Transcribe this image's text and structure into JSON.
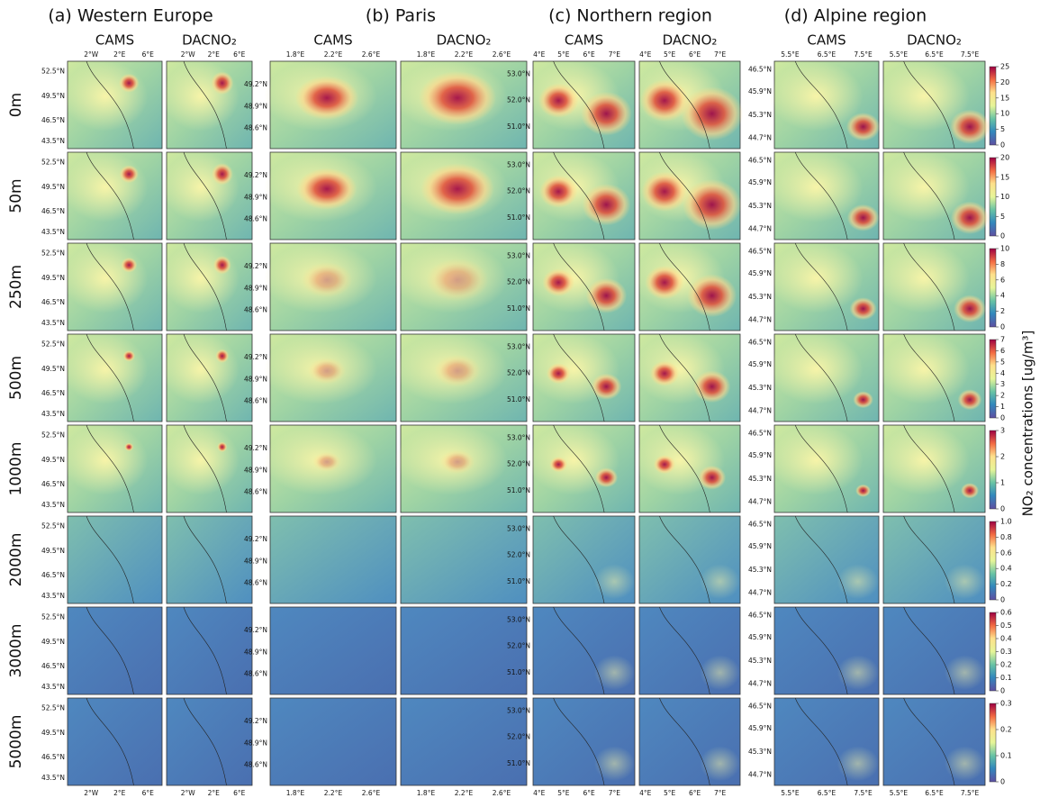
{
  "figure": {
    "regions": [
      {
        "title": "(a)  Western Europe",
        "columns": [
          "CAMS",
          "DACNO₂"
        ],
        "lon_labels": [
          "2°W",
          "2°E",
          "6°E"
        ],
        "lat_labels": [
          "52.5°N",
          "49.5°N",
          "46.5°N",
          "43.5°N"
        ]
      },
      {
        "title": "(b)            Paris",
        "columns": [
          "CAMS",
          "DACNO₂"
        ],
        "lon_labels": [
          "1.8°E",
          "2.2°E",
          "2.6°E"
        ],
        "lat_labels": [
          "49.2°N",
          "48.9°N",
          "48.6°N"
        ]
      },
      {
        "title": "(c)   Northern region",
        "columns": [
          "CAMS",
          "DACNO₂"
        ],
        "lon_labels": [
          "4°E",
          "5°E",
          "6°E",
          "7°E"
        ],
        "lat_labels": [
          "53.0°N",
          "52.0°N",
          "51.0°N"
        ]
      },
      {
        "title": "(d)     Alpine region",
        "columns": [
          "CAMS",
          "DACNO₂"
        ],
        "lon_labels": [
          "5.5°E",
          "6.5°E",
          "7.5°E"
        ],
        "lat_labels": [
          "46.5°N",
          "45.9°N",
          "45.3°N",
          "44.7°N"
        ]
      }
    ],
    "rows": [
      {
        "label": "0m",
        "colorbar_ticks": [
          0,
          5,
          10,
          15,
          20,
          25
        ]
      },
      {
        "label": "50m",
        "colorbar_ticks": [
          0,
          5,
          10,
          15,
          20
        ]
      },
      {
        "label": "250m",
        "colorbar_ticks": [
          0,
          2,
          4,
          6,
          8,
          10
        ]
      },
      {
        "label": "500m",
        "colorbar_ticks": [
          0,
          1,
          2,
          3,
          4,
          5,
          6,
          7
        ]
      },
      {
        "label": "1000m",
        "colorbar_ticks": [
          0,
          1,
          2,
          3
        ]
      },
      {
        "label": "2000m",
        "colorbar_ticks": [
          0,
          0.2,
          0.4,
          0.6,
          0.8,
          {
            "value": 1,
            "label": "1.0"
          }
        ]
      },
      {
        "label": "3000m",
        "colorbar_ticks": [
          0,
          0.1,
          0.2,
          0.3,
          0.4,
          0.5,
          0.6
        ]
      },
      {
        "label": "5000m",
        "colorbar_ticks": [
          0,
          0.1,
          0.2,
          0.3
        ]
      }
    ],
    "colorbar_label": "NO₂ concentrations [ug/m³]"
  }
}
